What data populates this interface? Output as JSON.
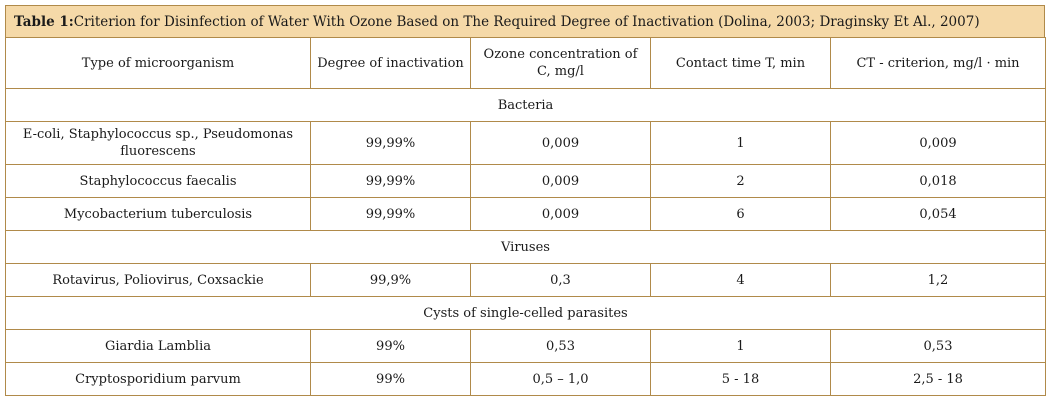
{
  "table": {
    "caption_label": "Table 1:",
    "caption_text": " Criterion for Disinfection of Water With Ozone Based on The Required Degree of Inactivation (Dolina, 2003; Draginsky Et Al., 2007)",
    "headers": [
      "Type of microorganism",
      "Degree of inactivation",
      "Ozone concentration of C, mg/l",
      "Contact time T, min",
      "CT - criterion, mg/l · min"
    ],
    "groups": [
      {
        "name": "Bacteria",
        "rows": [
          [
            "E-coli, Staphylococcus sp., Pseudomonas fluorescens",
            "99,99%",
            "0,009",
            "1",
            "0,009"
          ],
          [
            "Staphylococcus faecalis",
            "99,99%",
            "0,009",
            "2",
            "0,018"
          ],
          [
            "Mycobacterium tuberculosis",
            "99,99%",
            "0,009",
            "6",
            "0,054"
          ]
        ]
      },
      {
        "name": "Viruses",
        "rows": [
          [
            "Rotavirus, Poliovirus, Coxsackie",
            "99,9%",
            "0,3",
            "4",
            "1,2"
          ]
        ]
      },
      {
        "name": "Cysts of single-celled parasites",
        "rows": [
          [
            "Giardia Lamblia",
            "99%",
            "0,53",
            "1",
            "0,53"
          ],
          [
            "Cryptosporidium parvum",
            "99%",
            "0,5 – 1,0",
            "5 - 18",
            "2,5 - 18"
          ]
        ]
      }
    ]
  }
}
